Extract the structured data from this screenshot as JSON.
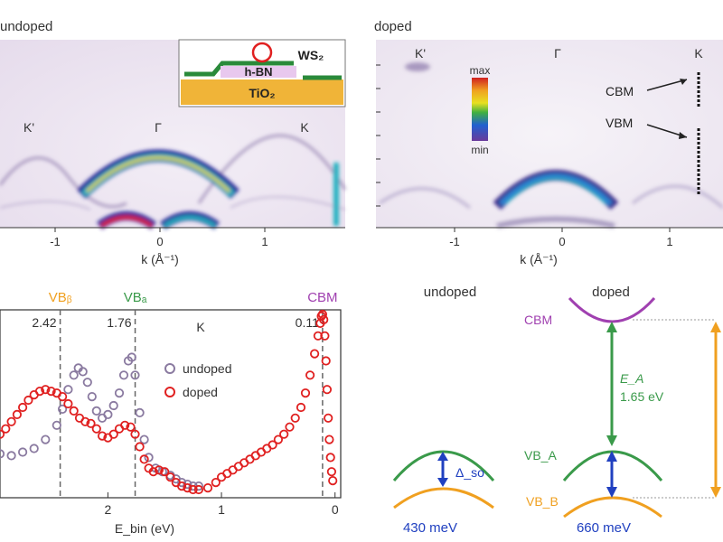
{
  "arpes_undoped": {
    "title": "undoped",
    "k_labels": [
      "K'",
      "Γ",
      "K"
    ],
    "x_ticks": [
      "-1",
      "0",
      "1"
    ],
    "xlabel": "k (Å⁻¹)"
  },
  "inset": {
    "top_label": "WS₂",
    "mid_label": "h-BN",
    "bottom_label": "TiO₂"
  },
  "arpes_doped": {
    "title": "doped",
    "k_labels": [
      "K'",
      "Γ",
      "K"
    ],
    "x_ticks": [
      "-1",
      "0",
      "1"
    ],
    "xlabel": "k (Å⁻¹)",
    "annotations": [
      "CBM",
      "VBM"
    ],
    "colorbar": {
      "max_label": "max",
      "min_label": "min"
    }
  },
  "edc": {
    "chart_data": {
      "type": "scatter",
      "xlabel": "E_bin (eV)",
      "x_ticks": [
        "2",
        "1",
        "0"
      ],
      "xlim": [
        2.95,
        -0.05
      ],
      "point_label": "K",
      "markers": [
        {
          "label": "VB_B",
          "x": 2.42,
          "value_label": "2.42",
          "color": "#f0a020"
        },
        {
          "label": "VB_A",
          "x": 1.76,
          "value_label": "1.76",
          "color": "#3a9a4a"
        },
        {
          "label": "CBM",
          "x": 0.11,
          "value_label": "0.11",
          "color": "#a040b0"
        }
      ],
      "series": [
        {
          "name": "undoped",
          "color": "#8a7aa0",
          "x": [
            2.95,
            2.85,
            2.75,
            2.65,
            2.55,
            2.45,
            2.4,
            2.35,
            2.3,
            2.26,
            2.22,
            2.18,
            2.14,
            2.1,
            2.05,
            2.0,
            1.95,
            1.9,
            1.86,
            1.82,
            1.79,
            1.76,
            1.72,
            1.68,
            1.64,
            1.58,
            1.52,
            1.45,
            1.4,
            1.35,
            1.3,
            1.25,
            1.2
          ],
          "y": [
            0.22,
            0.21,
            0.23,
            0.25,
            0.3,
            0.38,
            0.47,
            0.58,
            0.66,
            0.7,
            0.68,
            0.62,
            0.54,
            0.46,
            0.42,
            0.44,
            0.49,
            0.56,
            0.66,
            0.74,
            0.76,
            0.66,
            0.45,
            0.3,
            0.2,
            0.14,
            0.12,
            0.1,
            0.08,
            0.06,
            0.05,
            0.04,
            0.04
          ]
        },
        {
          "name": "doped",
          "color": "#e02020",
          "x": [
            2.95,
            2.9,
            2.85,
            2.8,
            2.75,
            2.7,
            2.65,
            2.6,
            2.55,
            2.5,
            2.45,
            2.4,
            2.35,
            2.3,
            2.25,
            2.2,
            2.15,
            2.1,
            2.05,
            2.0,
            1.95,
            1.9,
            1.85,
            1.8,
            1.76,
            1.72,
            1.68,
            1.64,
            1.6,
            1.55,
            1.5,
            1.45,
            1.4,
            1.35,
            1.3,
            1.25,
            1.2,
            1.12,
            1.05,
            1.0,
            0.95,
            0.9,
            0.85,
            0.8,
            0.75,
            0.7,
            0.65,
            0.6,
            0.55,
            0.5,
            0.45,
            0.4,
            0.35,
            0.3,
            0.26,
            0.22,
            0.18,
            0.15,
            0.13,
            0.12,
            0.11,
            0.1,
            0.09,
            0.08,
            0.07,
            0.06,
            0.05,
            0.04,
            0.03,
            0.02
          ],
          "y": [
            0.33,
            0.36,
            0.4,
            0.44,
            0.48,
            0.52,
            0.55,
            0.57,
            0.58,
            0.57,
            0.56,
            0.54,
            0.5,
            0.46,
            0.42,
            0.4,
            0.39,
            0.36,
            0.32,
            0.31,
            0.33,
            0.36,
            0.38,
            0.37,
            0.33,
            0.26,
            0.19,
            0.14,
            0.12,
            0.13,
            0.12,
            0.09,
            0.06,
            0.04,
            0.03,
            0.02,
            0.02,
            0.03,
            0.06,
            0.09,
            0.11,
            0.13,
            0.15,
            0.17,
            0.19,
            0.21,
            0.23,
            0.25,
            0.27,
            0.3,
            0.33,
            0.37,
            0.42,
            0.48,
            0.56,
            0.66,
            0.78,
            0.88,
            0.95,
            0.99,
            1.0,
            0.97,
            0.88,
            0.74,
            0.58,
            0.42,
            0.3,
            0.2,
            0.12,
            0.07
          ]
        }
      ]
    }
  },
  "band_diagram": {
    "undoped_title": "undoped",
    "doped_title": "doped",
    "cbm_label": "CBM",
    "vba_label": "VB_A",
    "vbb_label": "VB_B",
    "delta_label": "Δ_so",
    "gap_label": "E_A",
    "gap_value": "1.65 eV",
    "undoped_split": "430 meV",
    "doped_split": "660 meV",
    "colors": {
      "cbm": "#a040b0",
      "vba": "#3a9a4a",
      "vbb": "#f0a020",
      "split": "#2040c0",
      "gap": "#3a9a4a"
    }
  }
}
